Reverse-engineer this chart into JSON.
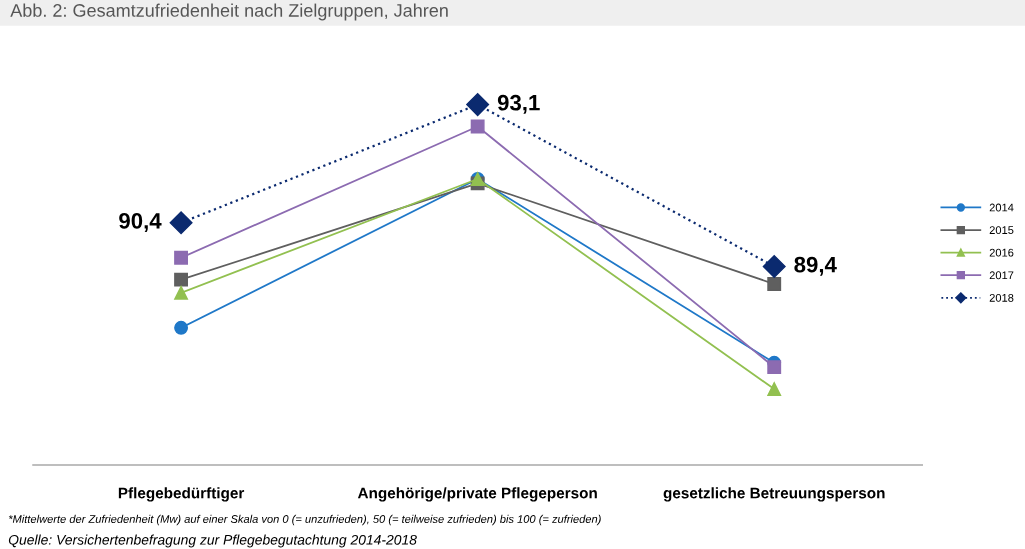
{
  "chart_data": {
    "type": "line",
    "tick_labels": "x",
    "title": "Abb. 2: Gesamtzufriedenheit nach Zielgruppen, Jahren",
    "categories": [
      "Pflegebedürftiger",
      "Angehörige/private Pflegeperson",
      "gesetzliche Betreuungsperson"
    ],
    "series": [
      {
        "name": "2014",
        "color": "#1f78c8",
        "marker": "circle",
        "line_style": "solid",
        "values": [
          88.0,
          91.4,
          87.2
        ]
      },
      {
        "name": "2015",
        "color": "#5f5f5f",
        "marker": "square",
        "line_style": "solid",
        "values": [
          89.1,
          91.3,
          89.0
        ]
      },
      {
        "name": "2016",
        "color": "#92c050",
        "marker": "triangle",
        "line_style": "solid",
        "values": [
          88.8,
          91.4,
          86.6
        ]
      },
      {
        "name": "2017",
        "color": "#8c6bb1",
        "marker": "square",
        "line_style": "solid",
        "values": [
          89.6,
          92.6,
          87.1
        ]
      },
      {
        "name": "2018",
        "color": "#0b2a6f",
        "marker": "diamond",
        "line_style": "dotted",
        "values": [
          90.4,
          93.1,
          89.4
        ],
        "value_labels": [
          "90,4",
          "93,1",
          "89,4"
        ]
      }
    ],
    "legend": "right",
    "grid": false,
    "annotations": [
      "*Mittelwerte der Zufriedenheit (Mw) auf einer Skala von 0 (= unzufrieden), 50 (= teilweise zufrieden) bis 100 (= zufrieden)",
      "Quelle: Versichertenbefragung zur Pflegebegutachtung 2014-2018"
    ]
  }
}
